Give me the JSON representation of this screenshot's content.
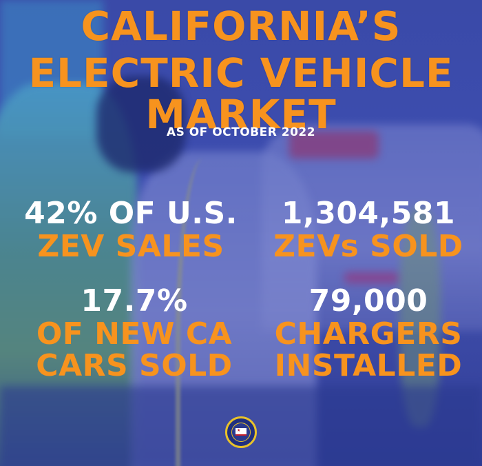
{
  "title": {
    "line1": "CALIFORNIA’S",
    "line2": "ELECTRIC VEHICLE",
    "line3": "MARKET",
    "subtitle": "AS OF OCTOBER 2022"
  },
  "stats": [
    {
      "value": "42% OF U.S.",
      "label": "ZEV SALES"
    },
    {
      "value": "1,304,581",
      "label": "ZEVs SOLD"
    },
    {
      "value": "17.7%",
      "label_line1": "OF NEW CA",
      "label_line2": "CARS SOLD"
    },
    {
      "value": "79,000",
      "label_line1": "CHARGERS",
      "label_line2": "INSTALLED"
    }
  ],
  "seal": {
    "icon": "state-seal-icon"
  },
  "colors": {
    "accent": "#f7931e",
    "text": "#ffffff",
    "background": "#3c4aa8"
  }
}
